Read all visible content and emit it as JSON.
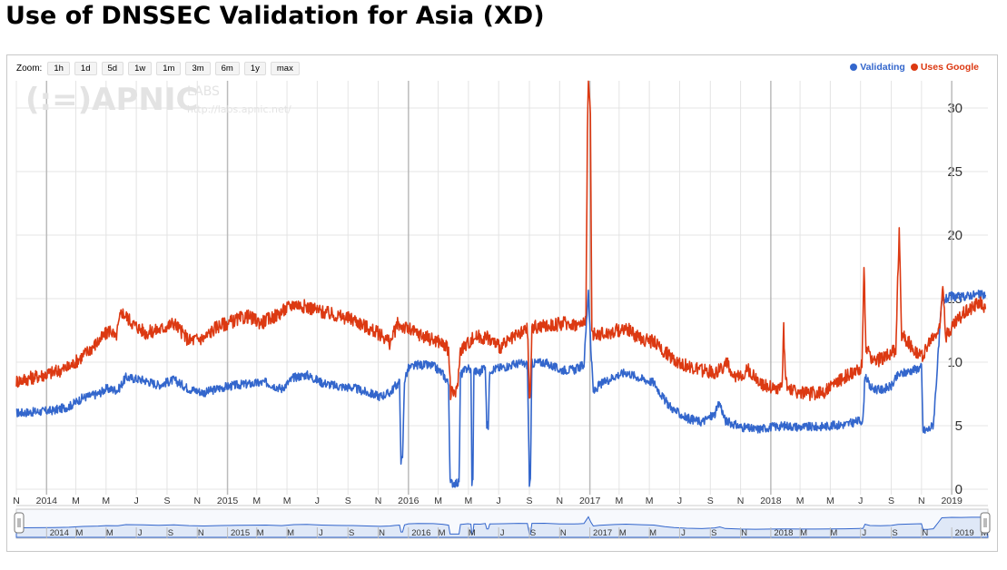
{
  "page": {
    "title": "Use of DNSSEC Validation for Asia (XD)"
  },
  "toolbar": {
    "zoom_label": "Zoom:",
    "zoom_buttons": [
      "1h",
      "1d",
      "5d",
      "1w",
      "1m",
      "3m",
      "6m",
      "1y",
      "max"
    ]
  },
  "watermark": {
    "logo": "(:=)APNIC",
    "labs": "LABS",
    "url": "http://labs.apnic.net/"
  },
  "colors": {
    "validating": "#3366cc",
    "uses_google": "#dc3912",
    "grid": "#e4e4e4",
    "grid_year": "#bbbbbb",
    "navigator_fill": "#dfe8f7"
  },
  "chart_data": {
    "type": "line",
    "title": "Use of DNSSEC Validation for Asia (XD)",
    "xlabel": "",
    "ylabel": "",
    "x_range": [
      "2013-11-01",
      "2019-03-15"
    ],
    "ylim": [
      0,
      32
    ],
    "y_ticks": [
      0,
      5,
      10,
      15,
      20,
      25,
      30
    ],
    "y_axis_side": "right",
    "grid": true,
    "legend_position": "top-right",
    "x_tick_labels": [
      {
        "date": "2013-11-01",
        "label": "N"
      },
      {
        "date": "2014-01-01",
        "label": "2014"
      },
      {
        "date": "2014-03-01",
        "label": "M"
      },
      {
        "date": "2014-05-01",
        "label": "M"
      },
      {
        "date": "2014-07-01",
        "label": "J"
      },
      {
        "date": "2014-09-01",
        "label": "S"
      },
      {
        "date": "2014-11-01",
        "label": "N"
      },
      {
        "date": "2015-01-01",
        "label": "2015"
      },
      {
        "date": "2015-03-01",
        "label": "M"
      },
      {
        "date": "2015-05-01",
        "label": "M"
      },
      {
        "date": "2015-07-01",
        "label": "J"
      },
      {
        "date": "2015-09-01",
        "label": "S"
      },
      {
        "date": "2015-11-01",
        "label": "N"
      },
      {
        "date": "2016-01-01",
        "label": "2016"
      },
      {
        "date": "2016-03-01",
        "label": "M"
      },
      {
        "date": "2016-05-01",
        "label": "M"
      },
      {
        "date": "2016-07-01",
        "label": "J"
      },
      {
        "date": "2016-09-01",
        "label": "S"
      },
      {
        "date": "2016-11-01",
        "label": "N"
      },
      {
        "date": "2017-01-01",
        "label": "2017"
      },
      {
        "date": "2017-03-01",
        "label": "M"
      },
      {
        "date": "2017-05-01",
        "label": "M"
      },
      {
        "date": "2017-07-01",
        "label": "J"
      },
      {
        "date": "2017-09-01",
        "label": "S"
      },
      {
        "date": "2017-11-01",
        "label": "N"
      },
      {
        "date": "2018-01-01",
        "label": "2018"
      },
      {
        "date": "2018-03-01",
        "label": "M"
      },
      {
        "date": "2018-05-01",
        "label": "M"
      },
      {
        "date": "2018-07-01",
        "label": "J"
      },
      {
        "date": "2018-09-01",
        "label": "S"
      },
      {
        "date": "2018-11-01",
        "label": "N"
      },
      {
        "date": "2019-01-01",
        "label": "2019"
      }
    ],
    "navigator_tick_labels": [
      {
        "date": "2014-01-01",
        "label": "2014"
      },
      {
        "date": "2014-03-01",
        "label": "M"
      },
      {
        "date": "2014-05-01",
        "label": "M"
      },
      {
        "date": "2014-07-01",
        "label": "J"
      },
      {
        "date": "2014-09-01",
        "label": "S"
      },
      {
        "date": "2014-11-01",
        "label": "N"
      },
      {
        "date": "2015-01-01",
        "label": "2015"
      },
      {
        "date": "2015-03-01",
        "label": "M"
      },
      {
        "date": "2015-05-01",
        "label": "M"
      },
      {
        "date": "2015-07-01",
        "label": "J"
      },
      {
        "date": "2015-09-01",
        "label": "S"
      },
      {
        "date": "2015-11-01",
        "label": "N"
      },
      {
        "date": "2016-01-01",
        "label": "2016"
      },
      {
        "date": "2016-03-01",
        "label": "M"
      },
      {
        "date": "2016-05-01",
        "label": "M"
      },
      {
        "date": "2016-07-01",
        "label": "J"
      },
      {
        "date": "2016-09-01",
        "label": "S"
      },
      {
        "date": "2016-11-01",
        "label": "N"
      },
      {
        "date": "2017-01-01",
        "label": "2017"
      },
      {
        "date": "2017-03-01",
        "label": "M"
      },
      {
        "date": "2017-05-01",
        "label": "M"
      },
      {
        "date": "2017-07-01",
        "label": "J"
      },
      {
        "date": "2017-09-01",
        "label": "S"
      },
      {
        "date": "2017-11-01",
        "label": "N"
      },
      {
        "date": "2018-01-01",
        "label": "2018"
      },
      {
        "date": "2018-03-01",
        "label": "M"
      },
      {
        "date": "2018-05-01",
        "label": "M"
      },
      {
        "date": "2018-07-01",
        "label": "J"
      },
      {
        "date": "2018-09-01",
        "label": "S"
      },
      {
        "date": "2018-11-01",
        "label": "N"
      },
      {
        "date": "2019-01-01",
        "label": "2019"
      },
      {
        "date": "2019-03-01",
        "label": "M"
      }
    ],
    "series": [
      {
        "name": "Validating",
        "color": "#3366cc",
        "points": [
          [
            "2013-11-01",
            6.0
          ],
          [
            "2013-12-15",
            6.1
          ],
          [
            "2014-01-15",
            6.2
          ],
          [
            "2014-02-15",
            6.5
          ],
          [
            "2014-03-15",
            7.2
          ],
          [
            "2014-04-15",
            7.5
          ],
          [
            "2014-05-01",
            7.9
          ],
          [
            "2014-05-25",
            7.8
          ],
          [
            "2014-06-10",
            8.8
          ],
          [
            "2014-07-15",
            8.6
          ],
          [
            "2014-08-15",
            8.2
          ],
          [
            "2014-09-15",
            8.6
          ],
          [
            "2014-10-15",
            7.9
          ],
          [
            "2014-11-15",
            7.6
          ],
          [
            "2014-12-20",
            8.0
          ],
          [
            "2015-01-20",
            8.2
          ],
          [
            "2015-02-20",
            8.3
          ],
          [
            "2015-03-20",
            8.4
          ],
          [
            "2015-04-20",
            7.9
          ],
          [
            "2015-05-15",
            8.8
          ],
          [
            "2015-06-10",
            9.0
          ],
          [
            "2015-07-10",
            8.4
          ],
          [
            "2015-08-10",
            8.1
          ],
          [
            "2015-09-10",
            8.0
          ],
          [
            "2015-10-10",
            7.6
          ],
          [
            "2015-11-05",
            7.3
          ],
          [
            "2015-11-25",
            7.6
          ],
          [
            "2015-12-05",
            8.1
          ],
          [
            "2015-12-14",
            8.4
          ],
          [
            "2015-12-17",
            2.3
          ],
          [
            "2015-12-20",
            2.3
          ],
          [
            "2015-12-24",
            8.6
          ],
          [
            "2016-01-01",
            9.5
          ],
          [
            "2016-01-20",
            9.8
          ],
          [
            "2016-02-20",
            9.7
          ],
          [
            "2016-03-10",
            9.1
          ],
          [
            "2016-03-22",
            8.3
          ],
          [
            "2016-03-25",
            0.5
          ],
          [
            "2016-04-12",
            0.5
          ],
          [
            "2016-04-15",
            9.0
          ],
          [
            "2016-04-30",
            9.6
          ],
          [
            "2016-05-06",
            9.3
          ],
          [
            "2016-05-08",
            0.6
          ],
          [
            "2016-05-10",
            0.6
          ],
          [
            "2016-05-12",
            9.3
          ],
          [
            "2016-05-25",
            9.2
          ],
          [
            "2016-06-04",
            9.8
          ],
          [
            "2016-06-07",
            5.0
          ],
          [
            "2016-06-10",
            5.0
          ],
          [
            "2016-06-13",
            9.4
          ],
          [
            "2016-07-10",
            9.6
          ],
          [
            "2016-08-10",
            9.9
          ],
          [
            "2016-08-28",
            9.8
          ],
          [
            "2016-09-01",
            0.5
          ],
          [
            "2016-09-03",
            0.5
          ],
          [
            "2016-09-06",
            9.9
          ],
          [
            "2016-10-01",
            10.0
          ],
          [
            "2016-11-01",
            9.4
          ],
          [
            "2016-12-01",
            9.4
          ],
          [
            "2016-12-20",
            9.8
          ],
          [
            "2016-12-26",
            13.8
          ],
          [
            "2016-12-29",
            15.7
          ],
          [
            "2017-01-03",
            11.0
          ],
          [
            "2017-01-08",
            7.6
          ],
          [
            "2017-01-20",
            8.2
          ],
          [
            "2017-02-20",
            8.9
          ],
          [
            "2017-03-15",
            9.2
          ],
          [
            "2017-04-15",
            8.7
          ],
          [
            "2017-05-10",
            8.4
          ],
          [
            "2017-06-01",
            7.0
          ],
          [
            "2017-06-20",
            6.2
          ],
          [
            "2017-07-15",
            5.6
          ],
          [
            "2017-08-15",
            5.3
          ],
          [
            "2017-09-10",
            5.9
          ],
          [
            "2017-09-20",
            6.8
          ],
          [
            "2017-10-01",
            5.4
          ],
          [
            "2017-11-01",
            4.9
          ],
          [
            "2017-12-01",
            4.7
          ],
          [
            "2018-01-01",
            4.9
          ],
          [
            "2018-02-01",
            5.0
          ],
          [
            "2018-03-01",
            4.9
          ],
          [
            "2018-04-01",
            4.9
          ],
          [
            "2018-05-01",
            5.0
          ],
          [
            "2018-06-01",
            5.1
          ],
          [
            "2018-06-30",
            5.4
          ],
          [
            "2018-07-06",
            5.4
          ],
          [
            "2018-07-10",
            9.1
          ],
          [
            "2018-07-20",
            8.0
          ],
          [
            "2018-08-10",
            7.8
          ],
          [
            "2018-09-01",
            8.1
          ],
          [
            "2018-09-15",
            9.0
          ],
          [
            "2018-10-15",
            9.4
          ],
          [
            "2018-11-01",
            9.6
          ],
          [
            "2018-11-04",
            4.6
          ],
          [
            "2018-11-15",
            4.7
          ],
          [
            "2018-11-25",
            5.1
          ],
          [
            "2018-12-05",
            10.8
          ],
          [
            "2018-12-12",
            14.8
          ],
          [
            "2019-01-01",
            15.2
          ],
          [
            "2019-01-20",
            15.1
          ],
          [
            "2019-02-10",
            15.3
          ],
          [
            "2019-03-10",
            15.3
          ]
        ]
      },
      {
        "name": "Uses Google",
        "color": "#dc3912",
        "points": [
          [
            "2013-11-01",
            8.5
          ],
          [
            "2013-12-15",
            8.9
          ],
          [
            "2014-01-15",
            9.2
          ],
          [
            "2014-02-15",
            9.6
          ],
          [
            "2014-03-15",
            10.5
          ],
          [
            "2014-04-15",
            11.6
          ],
          [
            "2014-05-10",
            12.6
          ],
          [
            "2014-05-20",
            11.8
          ],
          [
            "2014-06-01",
            14.0
          ],
          [
            "2014-06-25",
            13.0
          ],
          [
            "2014-07-20",
            12.3
          ],
          [
            "2014-08-20",
            12.6
          ],
          [
            "2014-09-15",
            13.1
          ],
          [
            "2014-10-15",
            11.7
          ],
          [
            "2014-11-15",
            11.9
          ],
          [
            "2014-12-10",
            12.8
          ],
          [
            "2015-01-10",
            13.2
          ],
          [
            "2015-02-10",
            13.6
          ],
          [
            "2015-03-10",
            13.1
          ],
          [
            "2015-04-10",
            13.7
          ],
          [
            "2015-05-15",
            14.6
          ],
          [
            "2015-06-15",
            14.3
          ],
          [
            "2015-07-15",
            13.9
          ],
          [
            "2015-08-15",
            13.6
          ],
          [
            "2015-09-15",
            13.3
          ],
          [
            "2015-10-15",
            12.6
          ],
          [
            "2015-11-10",
            12.1
          ],
          [
            "2015-11-25",
            11.5
          ],
          [
            "2015-12-10",
            13.0
          ],
          [
            "2016-01-10",
            12.4
          ],
          [
            "2016-02-10",
            11.9
          ],
          [
            "2016-03-05",
            11.6
          ],
          [
            "2016-03-22",
            11.0
          ],
          [
            "2016-03-26",
            7.5
          ],
          [
            "2016-04-08",
            7.7
          ],
          [
            "2016-04-15",
            11.0
          ],
          [
            "2016-05-15",
            12.0
          ],
          [
            "2016-06-10",
            11.9
          ],
          [
            "2016-07-05",
            11.2
          ],
          [
            "2016-08-05",
            12.0
          ],
          [
            "2016-08-28",
            12.6
          ],
          [
            "2016-09-01",
            7.4
          ],
          [
            "2016-09-03",
            7.4
          ],
          [
            "2016-09-06",
            12.7
          ],
          [
            "2016-10-15",
            12.9
          ],
          [
            "2016-11-15",
            13.1
          ],
          [
            "2016-12-15",
            12.9
          ],
          [
            "2016-12-24",
            13.6
          ],
          [
            "2016-12-27",
            27.6
          ],
          [
            "2016-12-29",
            31.9
          ],
          [
            "2017-01-02",
            30.0
          ],
          [
            "2017-01-05",
            12.2
          ],
          [
            "2017-02-10",
            12.3
          ],
          [
            "2017-03-15",
            12.7
          ],
          [
            "2017-04-10",
            11.9
          ],
          [
            "2017-05-10",
            11.6
          ],
          [
            "2017-06-01",
            10.8
          ],
          [
            "2017-06-25",
            10.1
          ],
          [
            "2017-07-20",
            9.6
          ],
          [
            "2017-08-20",
            9.3
          ],
          [
            "2017-09-15",
            9.2
          ],
          [
            "2017-10-05",
            10.0
          ],
          [
            "2017-10-15",
            8.6
          ],
          [
            "2017-11-15",
            9.4
          ],
          [
            "2017-12-15",
            8.3
          ],
          [
            "2018-01-10",
            7.9
          ],
          [
            "2018-01-24",
            8.1
          ],
          [
            "2018-01-27",
            12.6
          ],
          [
            "2018-01-31",
            8.3
          ],
          [
            "2018-02-20",
            7.7
          ],
          [
            "2018-03-20",
            7.5
          ],
          [
            "2018-04-20",
            7.7
          ],
          [
            "2018-05-10",
            8.3
          ],
          [
            "2018-06-01",
            8.9
          ],
          [
            "2018-06-20",
            9.1
          ],
          [
            "2018-07-04",
            9.8
          ],
          [
            "2018-07-08",
            17.3
          ],
          [
            "2018-07-12",
            11.0
          ],
          [
            "2018-07-30",
            10.0
          ],
          [
            "2018-08-25",
            10.6
          ],
          [
            "2018-09-10",
            10.9
          ],
          [
            "2018-09-17",
            20.2
          ],
          [
            "2018-09-22",
            12.2
          ],
          [
            "2018-10-15",
            11.1
          ],
          [
            "2018-11-01",
            10.4
          ],
          [
            "2018-11-20",
            11.7
          ],
          [
            "2018-12-08",
            12.6
          ],
          [
            "2018-12-14",
            16.4
          ],
          [
            "2018-12-20",
            12.0
          ],
          [
            "2019-01-10",
            13.2
          ],
          [
            "2019-01-25",
            13.9
          ],
          [
            "2019-02-10",
            14.3
          ],
          [
            "2019-02-25",
            14.8
          ],
          [
            "2019-03-05",
            14.5
          ],
          [
            "2019-03-10",
            14.2
          ]
        ]
      }
    ]
  }
}
